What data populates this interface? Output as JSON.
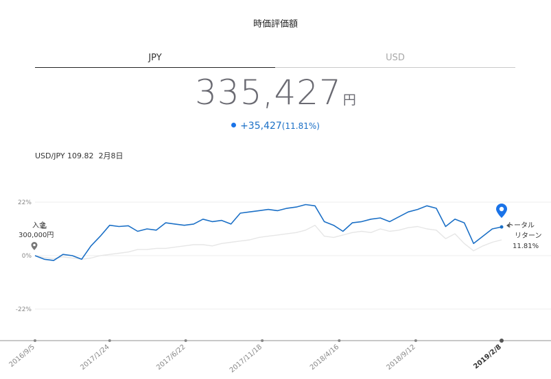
{
  "header": {
    "title": "時価評価額"
  },
  "tabs": [
    {
      "label": "JPY",
      "active": true
    },
    {
      "label": "USD",
      "active": false
    }
  ],
  "summary": {
    "value": "335,427",
    "unit": "円",
    "change": "+35,427",
    "change_pct": "(11.81%)"
  },
  "fx_rate": {
    "label": "USD/JPY 109.82",
    "date": "2月8日"
  },
  "colors": {
    "accent": "#1a6fc6",
    "benchmark": "#e6e6e6",
    "text_muted": "#a8a8a8"
  },
  "annotations": {
    "deposit_label": "入金",
    "deposit_amount": "300,000円",
    "total_return_line1": "トータル",
    "total_return_line2": "リターン",
    "total_return_pct": "11.81%"
  },
  "chart_data": {
    "type": "line",
    "y_ticks": [
      "22%",
      "0%",
      "-22%"
    ],
    "ylim": [
      -35,
      27
    ],
    "x_ticks": [
      "2016/9/5",
      "2017/1/24",
      "2017/6/22",
      "2017/11/18",
      "2018/4/16",
      "2018/9/12",
      "2019/2/8"
    ],
    "x_tick_fracs": [
      0.0,
      0.16,
      0.323,
      0.487,
      0.652,
      0.816,
      1.0
    ],
    "series": [
      {
        "color": "#1a6fc6",
        "x": [
          0.0,
          0.02,
          0.04,
          0.06,
          0.08,
          0.1,
          0.12,
          0.14,
          0.16,
          0.18,
          0.2,
          0.22,
          0.24,
          0.26,
          0.28,
          0.3,
          0.32,
          0.34,
          0.36,
          0.38,
          0.4,
          0.42,
          0.44,
          0.46,
          0.48,
          0.5,
          0.52,
          0.54,
          0.56,
          0.58,
          0.6,
          0.62,
          0.64,
          0.66,
          0.68,
          0.7,
          0.72,
          0.74,
          0.76,
          0.78,
          0.8,
          0.82,
          0.84,
          0.86,
          0.88,
          0.9,
          0.92,
          0.94,
          0.96,
          0.98,
          1.0
        ],
        "y": [
          0.0,
          -1.5,
          -2.0,
          0.5,
          0.0,
          -1.5,
          4.0,
          8.0,
          12.5,
          12.0,
          12.3,
          10.0,
          11.0,
          10.5,
          13.5,
          13.0,
          12.5,
          13.0,
          15.0,
          14.0,
          14.5,
          13.0,
          17.5,
          18.0,
          18.5,
          19.0,
          18.5,
          19.5,
          20.0,
          21.0,
          20.5,
          14.0,
          12.5,
          10.0,
          13.5,
          14.0,
          15.0,
          15.5,
          14.0,
          16.0,
          18.0,
          19.0,
          20.5,
          19.5,
          12.0,
          15.0,
          13.5,
          5.0,
          8.0,
          11.0,
          11.81
        ]
      },
      {
        "color": "#e6e6e6",
        "x": [
          0.0,
          0.02,
          0.04,
          0.06,
          0.08,
          0.1,
          0.12,
          0.14,
          0.16,
          0.18,
          0.2,
          0.22,
          0.24,
          0.26,
          0.28,
          0.3,
          0.32,
          0.34,
          0.36,
          0.38,
          0.4,
          0.42,
          0.44,
          0.46,
          0.48,
          0.5,
          0.52,
          0.54,
          0.56,
          0.58,
          0.6,
          0.62,
          0.64,
          0.66,
          0.68,
          0.7,
          0.72,
          0.74,
          0.76,
          0.78,
          0.8,
          0.82,
          0.84,
          0.86,
          0.88,
          0.9,
          0.92,
          0.94,
          0.96,
          0.98,
          1.0
        ],
        "y": [
          0.0,
          -0.8,
          -1.2,
          -0.5,
          -1.0,
          -1.5,
          -1.0,
          0.0,
          0.5,
          1.0,
          1.5,
          2.5,
          2.5,
          3.0,
          3.0,
          3.5,
          4.0,
          4.5,
          4.5,
          4.0,
          5.0,
          5.5,
          6.0,
          6.5,
          7.5,
          8.0,
          8.5,
          9.0,
          9.5,
          10.5,
          12.5,
          8.0,
          7.5,
          8.5,
          9.5,
          10.0,
          9.5,
          11.0,
          10.0,
          10.5,
          11.5,
          12.0,
          11.0,
          10.5,
          7.0,
          9.0,
          5.0,
          2.0,
          4.0,
          5.5,
          6.5
        ]
      }
    ]
  }
}
